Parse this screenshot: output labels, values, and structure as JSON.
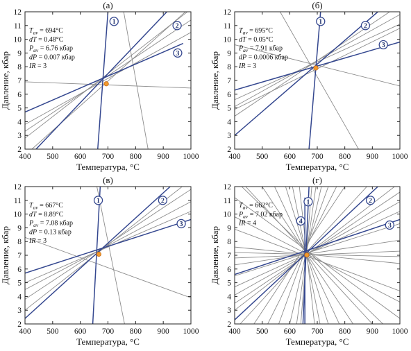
{
  "colors": {
    "blue": "#34478f",
    "gray": "#8c8c8c",
    "point": "#f29a2e",
    "frame": "#222222"
  },
  "chart_data": [
    {
      "type": "line",
      "panel": "(а)",
      "xlabel": "Температура, °С",
      "ylabel": "Давление, кбар",
      "xlim": [
        400,
        1000
      ],
      "ylim": [
        2,
        12
      ],
      "xticks": [
        400,
        500,
        600,
        700,
        800,
        900,
        1000
      ],
      "yticks": [
        2,
        3,
        4,
        5,
        6,
        7,
        8,
        9,
        10,
        11,
        12
      ],
      "intersection": {
        "T": 694,
        "P": 6.76
      },
      "annotation": [
        {
          "sym": "T",
          "sub": "av",
          "text": " = 694°С"
        },
        {
          "sym": "dT",
          "sub": "",
          "text": " = 0.48°С"
        },
        {
          "sym": "P",
          "sub": "av",
          "text": " = 6.76 кбар"
        },
        {
          "sym": "dP",
          "sub": "",
          "text": " = 0.007 кбар"
        },
        {
          "sym": "IR",
          "sub": "",
          "text": " = 3"
        }
      ],
      "blue_lines": [
        {
          "x": [
            700,
            663
          ],
          "y": [
            12,
            2
          ]
        },
        {
          "x": [
            913,
            440
          ],
          "y": [
            12,
            2
          ]
        },
        {
          "x": [
            972,
            400
          ],
          "y": [
            9.7,
            4.7
          ]
        }
      ],
      "gray_lines": [
        {
          "x": [
            400,
            1000
          ],
          "y": [
            6.9,
            6.45
          ]
        },
        {
          "x": [
            757,
            845
          ],
          "y": [
            12,
            2
          ]
        },
        {
          "x": [
            400,
            1000
          ],
          "y": [
            3.3,
            11.4
          ]
        },
        {
          "x": [
            400,
            1000
          ],
          "y": [
            2.8,
            12.2
          ]
        },
        {
          "x": [
            400,
            1000
          ],
          "y": [
            3.8,
            10.5
          ]
        },
        {
          "x": [
            425,
            980
          ],
          "y": [
            2,
            12
          ]
        }
      ],
      "markers": [
        {
          "label": "1",
          "x": 722,
          "y": 11.3
        },
        {
          "label": "2",
          "x": 950,
          "y": 11.0
        },
        {
          "label": "3",
          "x": 952,
          "y": 9.0
        }
      ]
    },
    {
      "type": "line",
      "panel": "(б)",
      "xlabel": "Температура, °С",
      "ylabel": "Давление, кбар",
      "xlim": [
        400,
        1000
      ],
      "ylim": [
        2,
        12
      ],
      "xticks": [
        400,
        500,
        600,
        700,
        800,
        900,
        1000
      ],
      "yticks": [
        2,
        3,
        4,
        5,
        6,
        7,
        8,
        9,
        10,
        11,
        12
      ],
      "intersection": {
        "T": 695,
        "P": 7.91
      },
      "annotation": [
        {
          "sym": "T",
          "sub": "av",
          "text": " = 695°С"
        },
        {
          "sym": "dT",
          "sub": "",
          "text": " = 0.05°С"
        },
        {
          "sym": "P",
          "sub": "av",
          "text": " = 7.91 кбар"
        },
        {
          "sym": "dP",
          "sub": "",
          "text": " = 0.0006 кбар"
        },
        {
          "sym": "IR",
          "sub": "",
          "text": " = 3"
        }
      ],
      "blue_lines": [
        {
          "x": [
            712,
            670
          ],
          "y": [
            12,
            2
          ]
        },
        {
          "x": [
            920,
            400
          ],
          "y": [
            12,
            3
          ]
        },
        {
          "x": [
            1000,
            400
          ],
          "y": [
            9.8,
            6.3
          ]
        }
      ],
      "gray_lines": [
        {
          "x": [
            400,
            1000
          ],
          "y": [
            9.6,
            6.6
          ]
        },
        {
          "x": [
            565,
            850
          ],
          "y": [
            12,
            2
          ]
        },
        {
          "x": [
            400,
            1000
          ],
          "y": [
            5.1,
            11.8
          ]
        },
        {
          "x": [
            400,
            1000
          ],
          "y": [
            4.4,
            12.5
          ]
        },
        {
          "x": [
            400,
            1000
          ],
          "y": [
            5.6,
            11.1
          ]
        },
        {
          "x": [
            400,
            1000
          ],
          "y": [
            4.9,
            10.8
          ]
        }
      ],
      "markers": [
        {
          "label": "1",
          "x": 712,
          "y": 11.3
        },
        {
          "label": "2",
          "x": 875,
          "y": 11.0
        },
        {
          "label": "3",
          "x": 940,
          "y": 9.6
        }
      ]
    },
    {
      "type": "line",
      "panel": "(в)",
      "xlabel": "Температура, °С",
      "ylabel": "Давление, кбар",
      "xlim": [
        400,
        1000
      ],
      "ylim": [
        2,
        12
      ],
      "xticks": [
        400,
        500,
        600,
        700,
        800,
        900,
        1000
      ],
      "yticks": [
        2,
        3,
        4,
        5,
        6,
        7,
        8,
        9,
        10,
        11,
        12
      ],
      "intersection": {
        "T": 667,
        "P": 7.08
      },
      "annotation": [
        {
          "sym": "T",
          "sub": "av",
          "text": " = 667°С"
        },
        {
          "sym": "dT",
          "sub": "",
          "text": " = 8.89°С"
        },
        {
          "sym": "P",
          "sub": "av",
          "text": " = 7.08 кбар"
        },
        {
          "sym": "dP",
          "sub": "",
          "text": " = 0.13 кбар"
        },
        {
          "sym": "IR",
          "sub": "",
          "text": " = 3"
        }
      ],
      "blue_lines": [
        {
          "x": [
            672,
            645
          ],
          "y": [
            12,
            2
          ]
        },
        {
          "x": [
            925,
            400
          ],
          "y": [
            12,
            2.4
          ]
        },
        {
          "x": [
            1000,
            400
          ],
          "y": [
            9.6,
            5.7
          ]
        }
      ],
      "gray_lines": [
        {
          "x": [
            400,
            1000
          ],
          "y": [
            8.3,
            3.9
          ]
        },
        {
          "x": [
            660,
            760
          ],
          "y": [
            12,
            2
          ]
        },
        {
          "x": [
            400,
            1000
          ],
          "y": [
            3.8,
            11.8
          ]
        },
        {
          "x": [
            400,
            1000
          ],
          "y": [
            3.0,
            12.5
          ]
        },
        {
          "x": [
            400,
            1000
          ],
          "y": [
            4.5,
            10.9
          ]
        },
        {
          "x": [
            400,
            1000
          ],
          "y": [
            5.0,
            10.2
          ]
        }
      ],
      "markers": [
        {
          "label": "1",
          "x": 665,
          "y": 11.0
        },
        {
          "label": "2",
          "x": 898,
          "y": 11.0
        },
        {
          "label": "3",
          "x": 965,
          "y": 9.3
        }
      ]
    },
    {
      "type": "line",
      "panel": "(г)",
      "xlabel": "Температура, °С",
      "ylabel": "Давление, кбар",
      "xlim": [
        400,
        1000
      ],
      "ylim": [
        2,
        12
      ],
      "xticks": [
        400,
        500,
        600,
        700,
        800,
        900,
        1000
      ],
      "yticks": [
        2,
        3,
        4,
        5,
        6,
        7,
        8,
        9,
        10,
        11,
        12
      ],
      "intersection": {
        "T": 662,
        "P": 7.02
      },
      "annotation": [
        {
          "sym": "T",
          "sub": "av",
          "text": " = 662°С"
        },
        {
          "sym": "P",
          "sub": "av",
          "text": " = 7.02 кбар"
        },
        {
          "sym": "IR",
          "sub": "",
          "text": " = 4"
        }
      ],
      "blue_lines": [
        {
          "x": [
            670,
            648
          ],
          "y": [
            12,
            2
          ]
        },
        {
          "x": [
            655,
            655
          ],
          "y": [
            11.2,
            2
          ]
        },
        {
          "x": [
            920,
            400
          ],
          "y": [
            12,
            2.3
          ]
        },
        {
          "x": [
            1000,
            400
          ],
          "y": [
            9.6,
            5.6
          ]
        }
      ],
      "gray_lines": [
        {
          "x": [
            400,
            1000
          ],
          "y": [
            8.9,
            4.4
          ]
        },
        {
          "x": [
            400,
            1000
          ],
          "y": [
            9.8,
            3.6
          ]
        },
        {
          "x": [
            400,
            1000
          ],
          "y": [
            7.6,
            6.4
          ]
        },
        {
          "x": [
            400,
            1000
          ],
          "y": [
            7.2,
            6.9
          ]
        },
        {
          "x": [
            400,
            1000
          ],
          "y": [
            6.8,
            7.3
          ]
        },
        {
          "x": [
            400,
            1000
          ],
          "y": [
            6.3,
            8.1
          ]
        },
        {
          "x": [
            400,
            1000
          ],
          "y": [
            5.5,
            9.3
          ]
        },
        {
          "x": [
            400,
            1000
          ],
          "y": [
            4.7,
            10.2
          ]
        },
        {
          "x": [
            400,
            1000
          ],
          "y": [
            4.1,
            10.9
          ]
        },
        {
          "x": [
            400,
            1000
          ],
          "y": [
            3.5,
            11.6
          ]
        },
        {
          "x": [
            400,
            1000
          ],
          "y": [
            3.0,
            12.3
          ]
        },
        {
          "x": [
            420,
            880
          ],
          "y": [
            2,
            12
          ]
        },
        {
          "x": [
            470,
            800
          ],
          "y": [
            2,
            12
          ]
        },
        {
          "x": [
            520,
            770
          ],
          "y": [
            2,
            12
          ]
        },
        {
          "x": [
            560,
            740
          ],
          "y": [
            2,
            12
          ]
        },
        {
          "x": [
            600,
            715
          ],
          "y": [
            2,
            12
          ]
        },
        {
          "x": [
            625,
            695
          ],
          "y": [
            2,
            12
          ]
        },
        {
          "x": [
            640,
            680
          ],
          "y": [
            2,
            12
          ]
        },
        {
          "x": [
            690,
            635
          ],
          "y": [
            2,
            12
          ]
        },
        {
          "x": [
            710,
            610
          ],
          "y": [
            2,
            12
          ]
        },
        {
          "x": [
            740,
            585
          ],
          "y": [
            2,
            12
          ]
        },
        {
          "x": [
            780,
            545
          ],
          "y": [
            2,
            12
          ]
        },
        {
          "x": [
            830,
            500
          ],
          "y": [
            2,
            12
          ]
        },
        {
          "x": [
            900,
            440
          ],
          "y": [
            2,
            12
          ]
        },
        {
          "x": [
            400,
            1000
          ],
          "y": [
            12.5,
            0.8
          ]
        },
        {
          "x": [
            400,
            1000
          ],
          "y": [
            11.2,
            2.4
          ]
        }
      ],
      "markers": [
        {
          "label": "1",
          "x": 667,
          "y": 10.9
        },
        {
          "label": "2",
          "x": 893,
          "y": 11.0
        },
        {
          "label": "3",
          "x": 963,
          "y": 9.2
        },
        {
          "label": "4",
          "x": 640,
          "y": 9.5
        }
      ]
    }
  ]
}
